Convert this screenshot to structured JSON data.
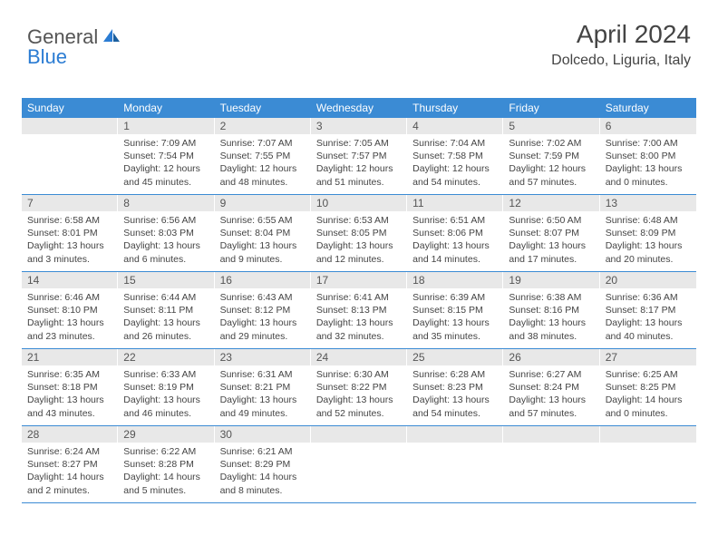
{
  "logo": {
    "text1": "General",
    "text2": "Blue",
    "icon_color": "#2b7cd3"
  },
  "header": {
    "month": "April 2024",
    "location": "Dolcedo, Liguria, Italy"
  },
  "colors": {
    "header_bg": "#3b8bd4",
    "header_text": "#ffffff",
    "daynum_bg": "#e8e8e8",
    "text": "#444444",
    "week_border": "#3b8bd4"
  },
  "day_labels": [
    "Sunday",
    "Monday",
    "Tuesday",
    "Wednesday",
    "Thursday",
    "Friday",
    "Saturday"
  ],
  "weeks": [
    [
      {
        "num": "",
        "lines": []
      },
      {
        "num": "1",
        "lines": [
          "Sunrise: 7:09 AM",
          "Sunset: 7:54 PM",
          "Daylight: 12 hours and 45 minutes."
        ]
      },
      {
        "num": "2",
        "lines": [
          "Sunrise: 7:07 AM",
          "Sunset: 7:55 PM",
          "Daylight: 12 hours and 48 minutes."
        ]
      },
      {
        "num": "3",
        "lines": [
          "Sunrise: 7:05 AM",
          "Sunset: 7:57 PM",
          "Daylight: 12 hours and 51 minutes."
        ]
      },
      {
        "num": "4",
        "lines": [
          "Sunrise: 7:04 AM",
          "Sunset: 7:58 PM",
          "Daylight: 12 hours and 54 minutes."
        ]
      },
      {
        "num": "5",
        "lines": [
          "Sunrise: 7:02 AM",
          "Sunset: 7:59 PM",
          "Daylight: 12 hours and 57 minutes."
        ]
      },
      {
        "num": "6",
        "lines": [
          "Sunrise: 7:00 AM",
          "Sunset: 8:00 PM",
          "Daylight: 13 hours and 0 minutes."
        ]
      }
    ],
    [
      {
        "num": "7",
        "lines": [
          "Sunrise: 6:58 AM",
          "Sunset: 8:01 PM",
          "Daylight: 13 hours and 3 minutes."
        ]
      },
      {
        "num": "8",
        "lines": [
          "Sunrise: 6:56 AM",
          "Sunset: 8:03 PM",
          "Daylight: 13 hours and 6 minutes."
        ]
      },
      {
        "num": "9",
        "lines": [
          "Sunrise: 6:55 AM",
          "Sunset: 8:04 PM",
          "Daylight: 13 hours and 9 minutes."
        ]
      },
      {
        "num": "10",
        "lines": [
          "Sunrise: 6:53 AM",
          "Sunset: 8:05 PM",
          "Daylight: 13 hours and 12 minutes."
        ]
      },
      {
        "num": "11",
        "lines": [
          "Sunrise: 6:51 AM",
          "Sunset: 8:06 PM",
          "Daylight: 13 hours and 14 minutes."
        ]
      },
      {
        "num": "12",
        "lines": [
          "Sunrise: 6:50 AM",
          "Sunset: 8:07 PM",
          "Daylight: 13 hours and 17 minutes."
        ]
      },
      {
        "num": "13",
        "lines": [
          "Sunrise: 6:48 AM",
          "Sunset: 8:09 PM",
          "Daylight: 13 hours and 20 minutes."
        ]
      }
    ],
    [
      {
        "num": "14",
        "lines": [
          "Sunrise: 6:46 AM",
          "Sunset: 8:10 PM",
          "Daylight: 13 hours and 23 minutes."
        ]
      },
      {
        "num": "15",
        "lines": [
          "Sunrise: 6:44 AM",
          "Sunset: 8:11 PM",
          "Daylight: 13 hours and 26 minutes."
        ]
      },
      {
        "num": "16",
        "lines": [
          "Sunrise: 6:43 AM",
          "Sunset: 8:12 PM",
          "Daylight: 13 hours and 29 minutes."
        ]
      },
      {
        "num": "17",
        "lines": [
          "Sunrise: 6:41 AM",
          "Sunset: 8:13 PM",
          "Daylight: 13 hours and 32 minutes."
        ]
      },
      {
        "num": "18",
        "lines": [
          "Sunrise: 6:39 AM",
          "Sunset: 8:15 PM",
          "Daylight: 13 hours and 35 minutes."
        ]
      },
      {
        "num": "19",
        "lines": [
          "Sunrise: 6:38 AM",
          "Sunset: 8:16 PM",
          "Daylight: 13 hours and 38 minutes."
        ]
      },
      {
        "num": "20",
        "lines": [
          "Sunrise: 6:36 AM",
          "Sunset: 8:17 PM",
          "Daylight: 13 hours and 40 minutes."
        ]
      }
    ],
    [
      {
        "num": "21",
        "lines": [
          "Sunrise: 6:35 AM",
          "Sunset: 8:18 PM",
          "Daylight: 13 hours and 43 minutes."
        ]
      },
      {
        "num": "22",
        "lines": [
          "Sunrise: 6:33 AM",
          "Sunset: 8:19 PM",
          "Daylight: 13 hours and 46 minutes."
        ]
      },
      {
        "num": "23",
        "lines": [
          "Sunrise: 6:31 AM",
          "Sunset: 8:21 PM",
          "Daylight: 13 hours and 49 minutes."
        ]
      },
      {
        "num": "24",
        "lines": [
          "Sunrise: 6:30 AM",
          "Sunset: 8:22 PM",
          "Daylight: 13 hours and 52 minutes."
        ]
      },
      {
        "num": "25",
        "lines": [
          "Sunrise: 6:28 AM",
          "Sunset: 8:23 PM",
          "Daylight: 13 hours and 54 minutes."
        ]
      },
      {
        "num": "26",
        "lines": [
          "Sunrise: 6:27 AM",
          "Sunset: 8:24 PM",
          "Daylight: 13 hours and 57 minutes."
        ]
      },
      {
        "num": "27",
        "lines": [
          "Sunrise: 6:25 AM",
          "Sunset: 8:25 PM",
          "Daylight: 14 hours and 0 minutes."
        ]
      }
    ],
    [
      {
        "num": "28",
        "lines": [
          "Sunrise: 6:24 AM",
          "Sunset: 8:27 PM",
          "Daylight: 14 hours and 2 minutes."
        ]
      },
      {
        "num": "29",
        "lines": [
          "Sunrise: 6:22 AM",
          "Sunset: 8:28 PM",
          "Daylight: 14 hours and 5 minutes."
        ]
      },
      {
        "num": "30",
        "lines": [
          "Sunrise: 6:21 AM",
          "Sunset: 8:29 PM",
          "Daylight: 14 hours and 8 minutes."
        ]
      },
      {
        "num": "",
        "lines": []
      },
      {
        "num": "",
        "lines": []
      },
      {
        "num": "",
        "lines": []
      },
      {
        "num": "",
        "lines": []
      }
    ]
  ]
}
